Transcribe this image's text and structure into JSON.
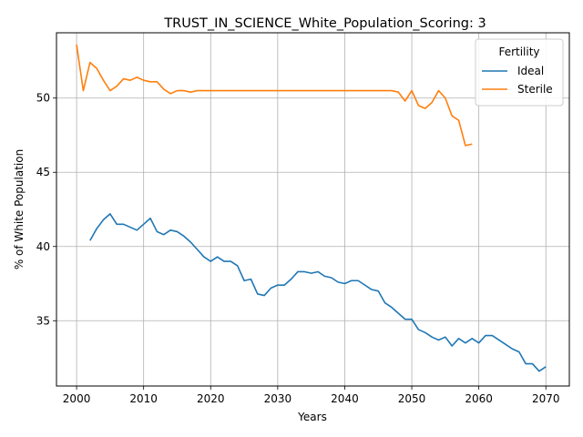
{
  "chart_data": {
    "type": "line",
    "title": "TRUST_IN_SCIENCE_White_Population_Scoring: 3",
    "xlabel": "Years",
    "ylabel": "% of White Population",
    "xlim": [
      1997,
      2073.5
    ],
    "ylim": [
      30.6,
      54.4
    ],
    "xticks": [
      2000,
      2010,
      2020,
      2030,
      2040,
      2050,
      2060,
      2070
    ],
    "yticks": [
      35,
      40,
      45,
      50
    ],
    "grid": true,
    "legend": {
      "title": "Fertility",
      "placement": "top-right"
    },
    "series": [
      {
        "name": "Ideal",
        "color": "#1f77b4",
        "x": [
          2002,
          2003,
          2004,
          2005,
          2006,
          2007,
          2008,
          2009,
          2010,
          2011,
          2012,
          2013,
          2014,
          2015,
          2016,
          2017,
          2018,
          2019,
          2020,
          2021,
          2022,
          2023,
          2024,
          2025,
          2026,
          2027,
          2028,
          2029,
          2030,
          2031,
          2032,
          2033,
          2034,
          2035,
          2036,
          2037,
          2038,
          2039,
          2040,
          2041,
          2042,
          2043,
          2044,
          2045,
          2046,
          2047,
          2048,
          2049,
          2050,
          2051,
          2052,
          2053,
          2054,
          2055,
          2056,
          2057,
          2058,
          2059,
          2060,
          2061,
          2062,
          2063,
          2064,
          2065,
          2066,
          2067,
          2068,
          2069,
          2070
        ],
        "values": [
          40.4,
          41.2,
          41.8,
          42.2,
          41.5,
          41.5,
          41.3,
          41.1,
          41.5,
          41.9,
          41.0,
          40.8,
          41.1,
          41.0,
          40.7,
          40.3,
          39.8,
          39.3,
          39.0,
          39.3,
          39.0,
          39.0,
          38.7,
          37.7,
          37.8,
          36.8,
          36.7,
          37.2,
          37.4,
          37.4,
          37.8,
          38.3,
          38.3,
          38.2,
          38.3,
          38.0,
          37.9,
          37.6,
          37.5,
          37.7,
          37.7,
          37.4,
          37.1,
          37.0,
          36.2,
          35.9,
          35.5,
          35.1,
          35.1,
          34.4,
          34.2,
          33.9,
          33.7,
          33.9,
          33.3,
          33.8,
          33.5,
          33.8,
          33.5,
          34.0,
          34.0,
          33.7,
          33.4,
          33.1,
          32.9,
          32.1,
          32.1,
          31.6,
          31.9
        ]
      },
      {
        "name": "Sterile",
        "color": "#ff7f0e",
        "x": [
          2000,
          2001,
          2002,
          2003,
          2004,
          2005,
          2006,
          2007,
          2008,
          2009,
          2010,
          2011,
          2012,
          2013,
          2014,
          2015,
          2016,
          2017,
          2018,
          2019,
          2020,
          2021,
          2022,
          2023,
          2024,
          2025,
          2026,
          2027,
          2028,
          2029,
          2030,
          2031,
          2032,
          2033,
          2034,
          2035,
          2036,
          2037,
          2038,
          2039,
          2040,
          2041,
          2042,
          2043,
          2044,
          2045,
          2046,
          2047,
          2048,
          2049,
          2050,
          2051,
          2052,
          2053,
          2054,
          2055,
          2056,
          2057,
          2058,
          2059
        ],
        "values": [
          53.6,
          50.5,
          52.4,
          52.0,
          51.2,
          50.5,
          50.8,
          51.3,
          51.2,
          51.4,
          51.2,
          51.1,
          51.1,
          50.6,
          50.3,
          50.5,
          50.5,
          50.4,
          50.5,
          50.5,
          50.5,
          50.5,
          50.5,
          50.5,
          50.5,
          50.5,
          50.5,
          50.5,
          50.5,
          50.5,
          50.5,
          50.5,
          50.5,
          50.5,
          50.5,
          50.5,
          50.5,
          50.5,
          50.5,
          50.5,
          50.5,
          50.5,
          50.5,
          50.5,
          50.5,
          50.5,
          50.5,
          50.5,
          50.4,
          49.8,
          50.5,
          49.5,
          49.3,
          49.7,
          50.5,
          50.0,
          48.8,
          48.5,
          46.8,
          46.9
        ]
      }
    ]
  }
}
